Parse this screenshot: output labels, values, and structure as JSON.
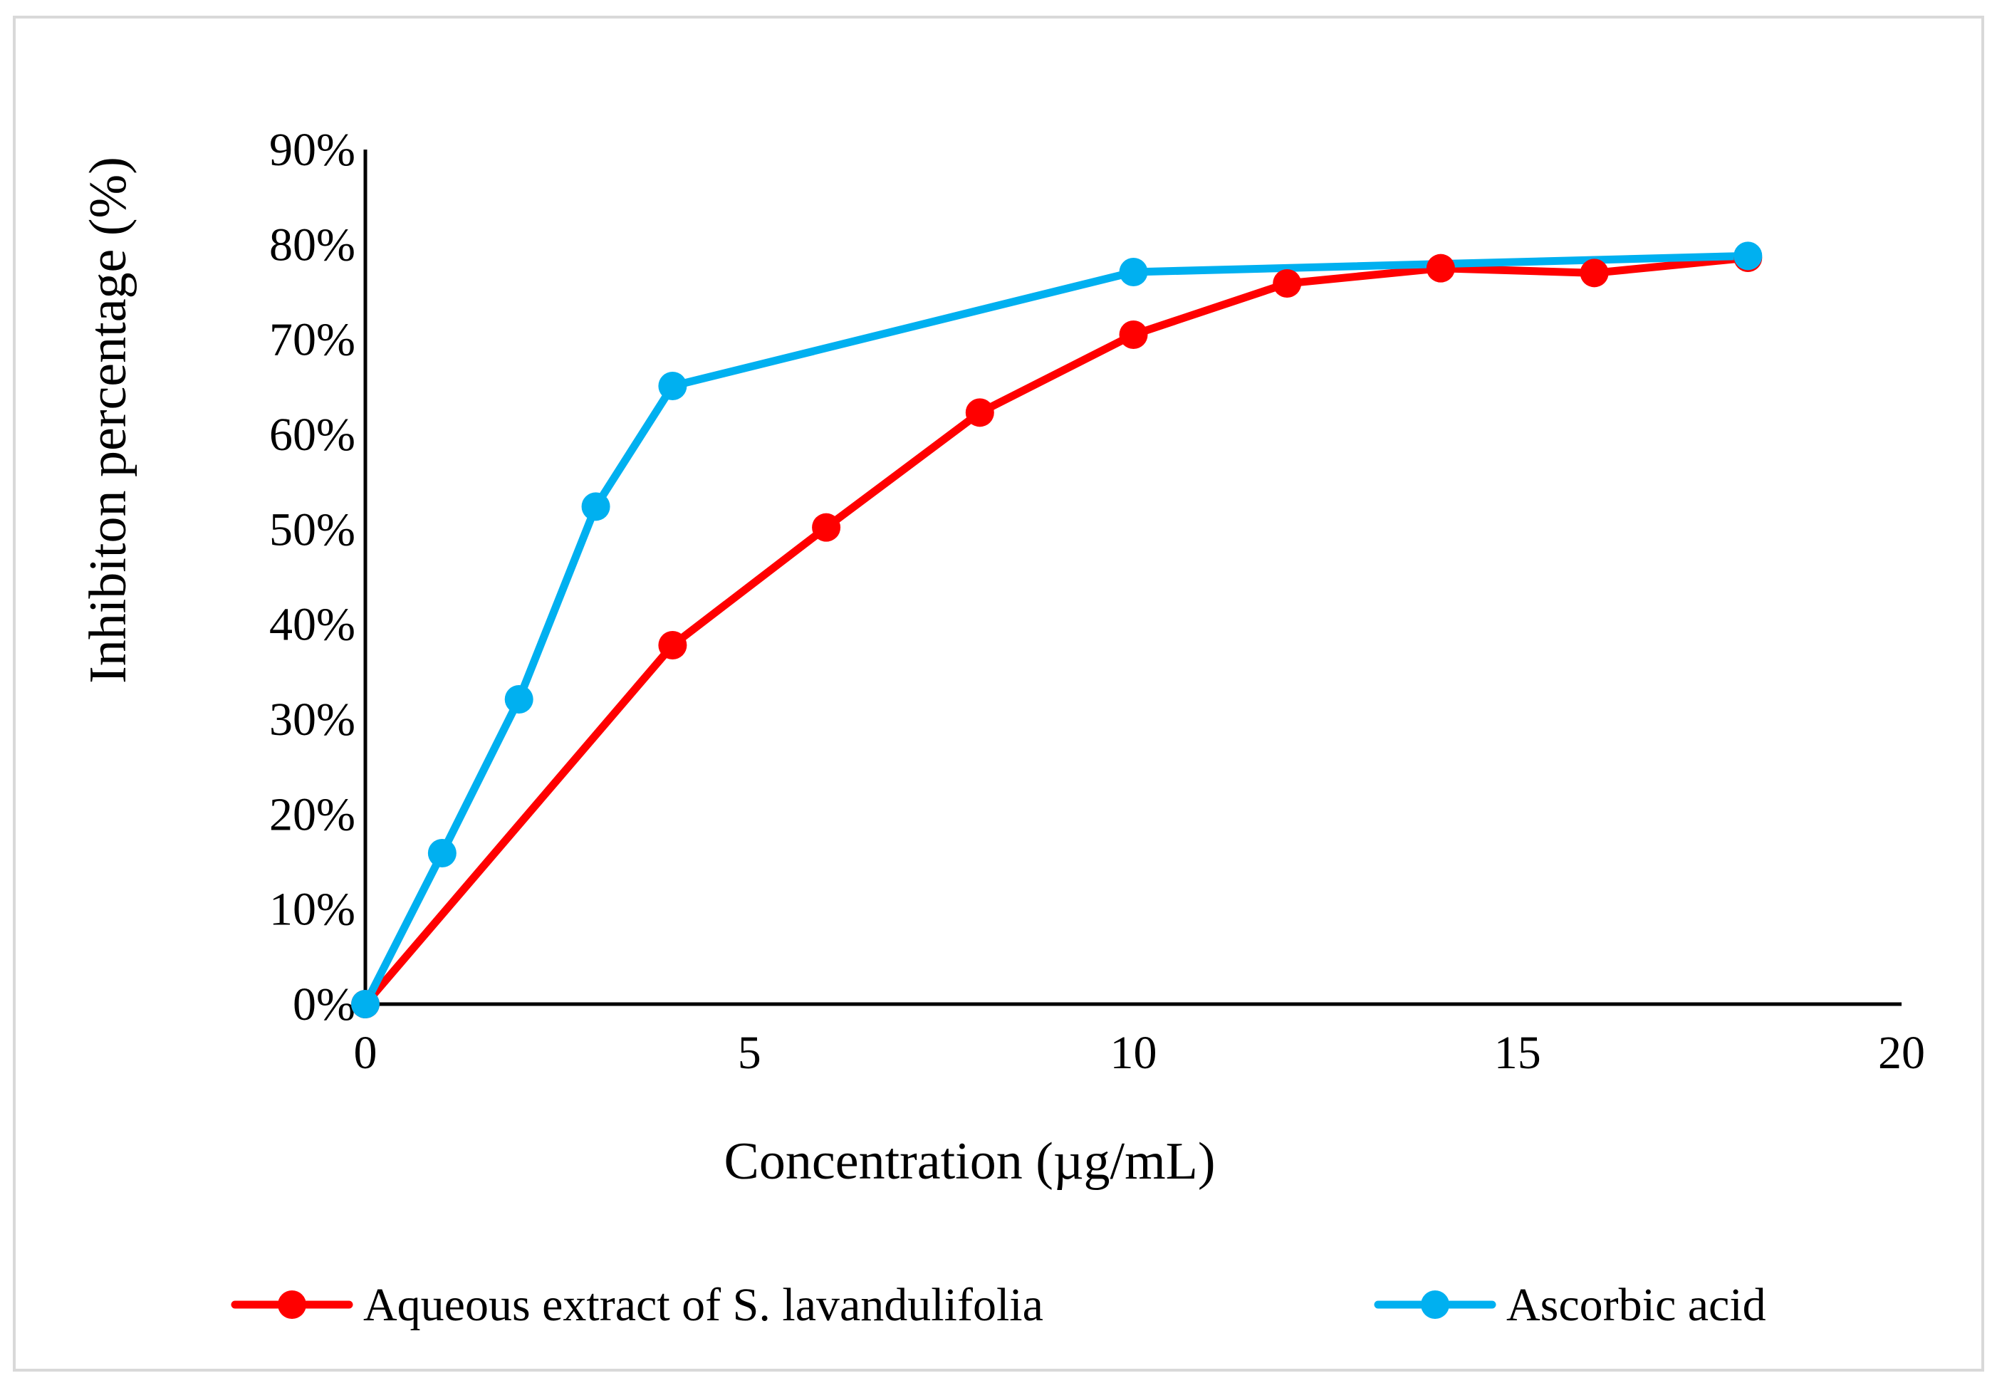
{
  "chart_data": {
    "type": "line",
    "title": "",
    "xlabel": "Concentration (µg/mL)",
    "ylabel": "Inhibiton percentage (%)",
    "xlim": [
      0,
      20
    ],
    "ylim": [
      0,
      90
    ],
    "xticks": [
      0,
      5,
      10,
      15,
      20
    ],
    "yticks": [
      0,
      10,
      20,
      30,
      40,
      50,
      60,
      70,
      80,
      90
    ],
    "yticklabels": [
      "0%",
      "10%",
      "20%",
      "30%",
      "40%",
      "50%",
      "60%",
      "70%",
      "80%",
      "90%"
    ],
    "grid": false,
    "legend_position": "bottom",
    "series": [
      {
        "name": "Aqueous extract of S. lavandulifolia",
        "color": "#ff0000",
        "x": [
          0,
          4,
          6,
          8,
          10,
          12,
          14,
          16,
          18
        ],
        "y": [
          0,
          37.8,
          50.2,
          62.3,
          70.5,
          75.9,
          77.5,
          77.0,
          78.6
        ]
      },
      {
        "name": "Ascorbic acid",
        "color": "#00b0f0",
        "x": [
          0,
          1,
          2,
          3,
          4,
          10,
          18
        ],
        "y": [
          0,
          15.9,
          32.1,
          52.4,
          65.1,
          77.1,
          78.8
        ]
      }
    ]
  }
}
